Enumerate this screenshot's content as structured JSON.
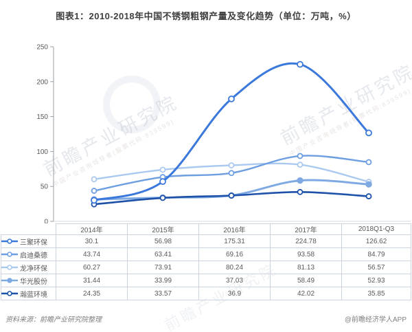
{
  "title": "图表1：2010-2018年中国不锈钢粗钢产量及变化趋势（单位：万吨，%）",
  "watermark": {
    "text": "前瞻产业研究院",
    "subtext": "中国产业咨询领导者(股票代码:839599)"
  },
  "footer": {
    "source": "资料来源：前瞻产业研究院整理",
    "credit": "@前瞻经济学人APP"
  },
  "chart_data": {
    "type": "line",
    "title": "图表1：2010-2018年中国不锈钢粗钢产量及变化趋势（单位：万吨，%）",
    "categories": [
      "2014年",
      "2015年",
      "2016年",
      "2017年",
      "2018Q1-Q3"
    ],
    "series": [
      {
        "name": "三聚环保",
        "values": [
          30.1,
          56.98,
          175.31,
          224.78,
          126.62
        ],
        "color": "#3a78dc",
        "marker": "open"
      },
      {
        "name": "启迪桑德",
        "values": [
          43.74,
          63.41,
          69.16,
          93.58,
          84.79
        ],
        "color": "#6d9ee0",
        "marker": "open"
      },
      {
        "name": "龙净环保",
        "values": [
          60.27,
          73.91,
          80.24,
          81.13,
          56.57
        ],
        "color": "#aac9ef",
        "marker": "open"
      },
      {
        "name": "华光股份",
        "values": [
          31.44,
          33.99,
          37.03,
          58.49,
          52.93
        ],
        "color": "#7fa9e3",
        "marker": "solid"
      },
      {
        "name": "瀚蓝环境",
        "values": [
          24.35,
          33.57,
          36.9,
          42.02,
          35.85
        ],
        "color": "#1d52a8",
        "marker": "open"
      }
    ],
    "xlabel": "",
    "ylabel": "",
    "ylim": [
      0,
      250
    ],
    "yticks": [
      0,
      50,
      100,
      150,
      200,
      250
    ],
    "grid": false,
    "legend_position": "table-left",
    "axis_color": "#9aa0a6",
    "tick_label_color": "#595959"
  }
}
